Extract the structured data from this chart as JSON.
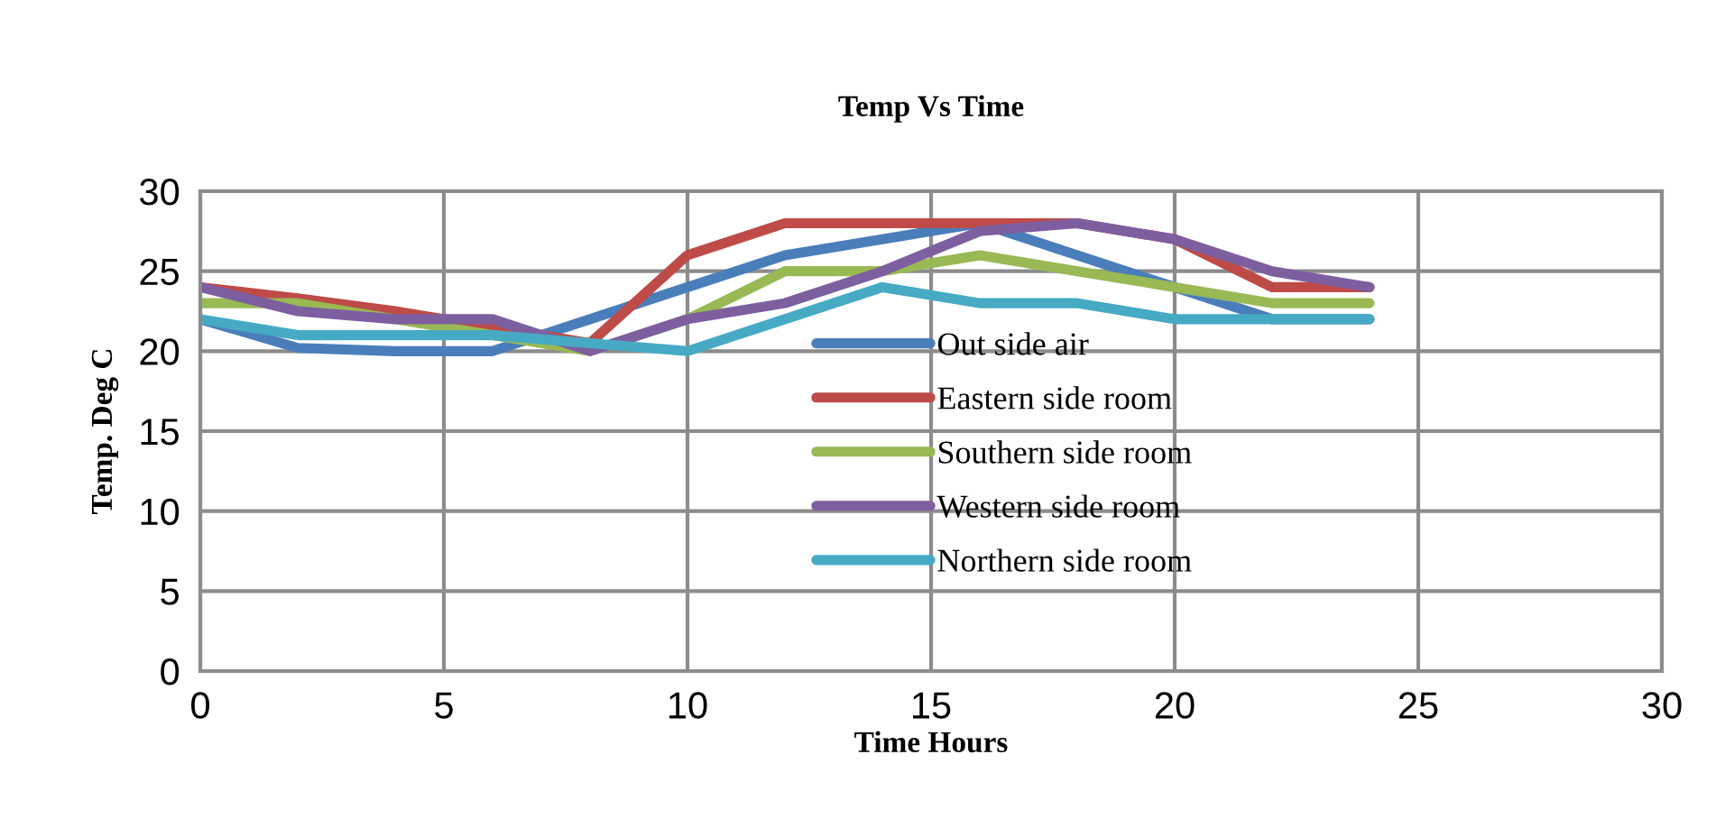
{
  "chart_data": {
    "type": "line",
    "title": "Temp Vs Time",
    "xlabel": "Time Hours",
    "ylabel": "Temp. Deg C",
    "x": [
      0,
      2,
      4,
      6,
      8,
      10,
      12,
      14,
      16,
      18,
      20,
      22,
      24
    ],
    "series": [
      {
        "name": "Out side air",
        "color": "#4a7ebb",
        "values": [
          22,
          20.2,
          20,
          20,
          22,
          24,
          26,
          27,
          28,
          26,
          24,
          22,
          22
        ]
      },
      {
        "name": "Eastern side room",
        "color": "#be4b48",
        "values": [
          24,
          23.3,
          22.5,
          21.5,
          20.5,
          26,
          28,
          28,
          28,
          28,
          27,
          24,
          24
        ]
      },
      {
        "name": "Southern side room",
        "color": "#98b954",
        "values": [
          23,
          23,
          22,
          21,
          20,
          22,
          25,
          25,
          26,
          25,
          24,
          23,
          23
        ]
      },
      {
        "name": "Western side room",
        "color": "#7d5fa0",
        "values": [
          24,
          22.5,
          22,
          22,
          20,
          22,
          23,
          25,
          27.5,
          28,
          27,
          25,
          24
        ]
      },
      {
        "name": "Northern side room",
        "color": "#46aac5",
        "values": [
          22,
          21,
          21,
          21,
          20.5,
          20,
          22,
          24,
          23,
          23,
          22,
          22,
          22
        ]
      }
    ],
    "xlim": [
      0,
      30
    ],
    "xticks": [
      0,
      5,
      10,
      15,
      20,
      25,
      30
    ],
    "ylim": [
      0,
      30
    ],
    "yticks": [
      0,
      5,
      10,
      15,
      20,
      25,
      30
    ],
    "grid": true,
    "legend": "center",
    "marker": "none",
    "line_style": "solid"
  }
}
